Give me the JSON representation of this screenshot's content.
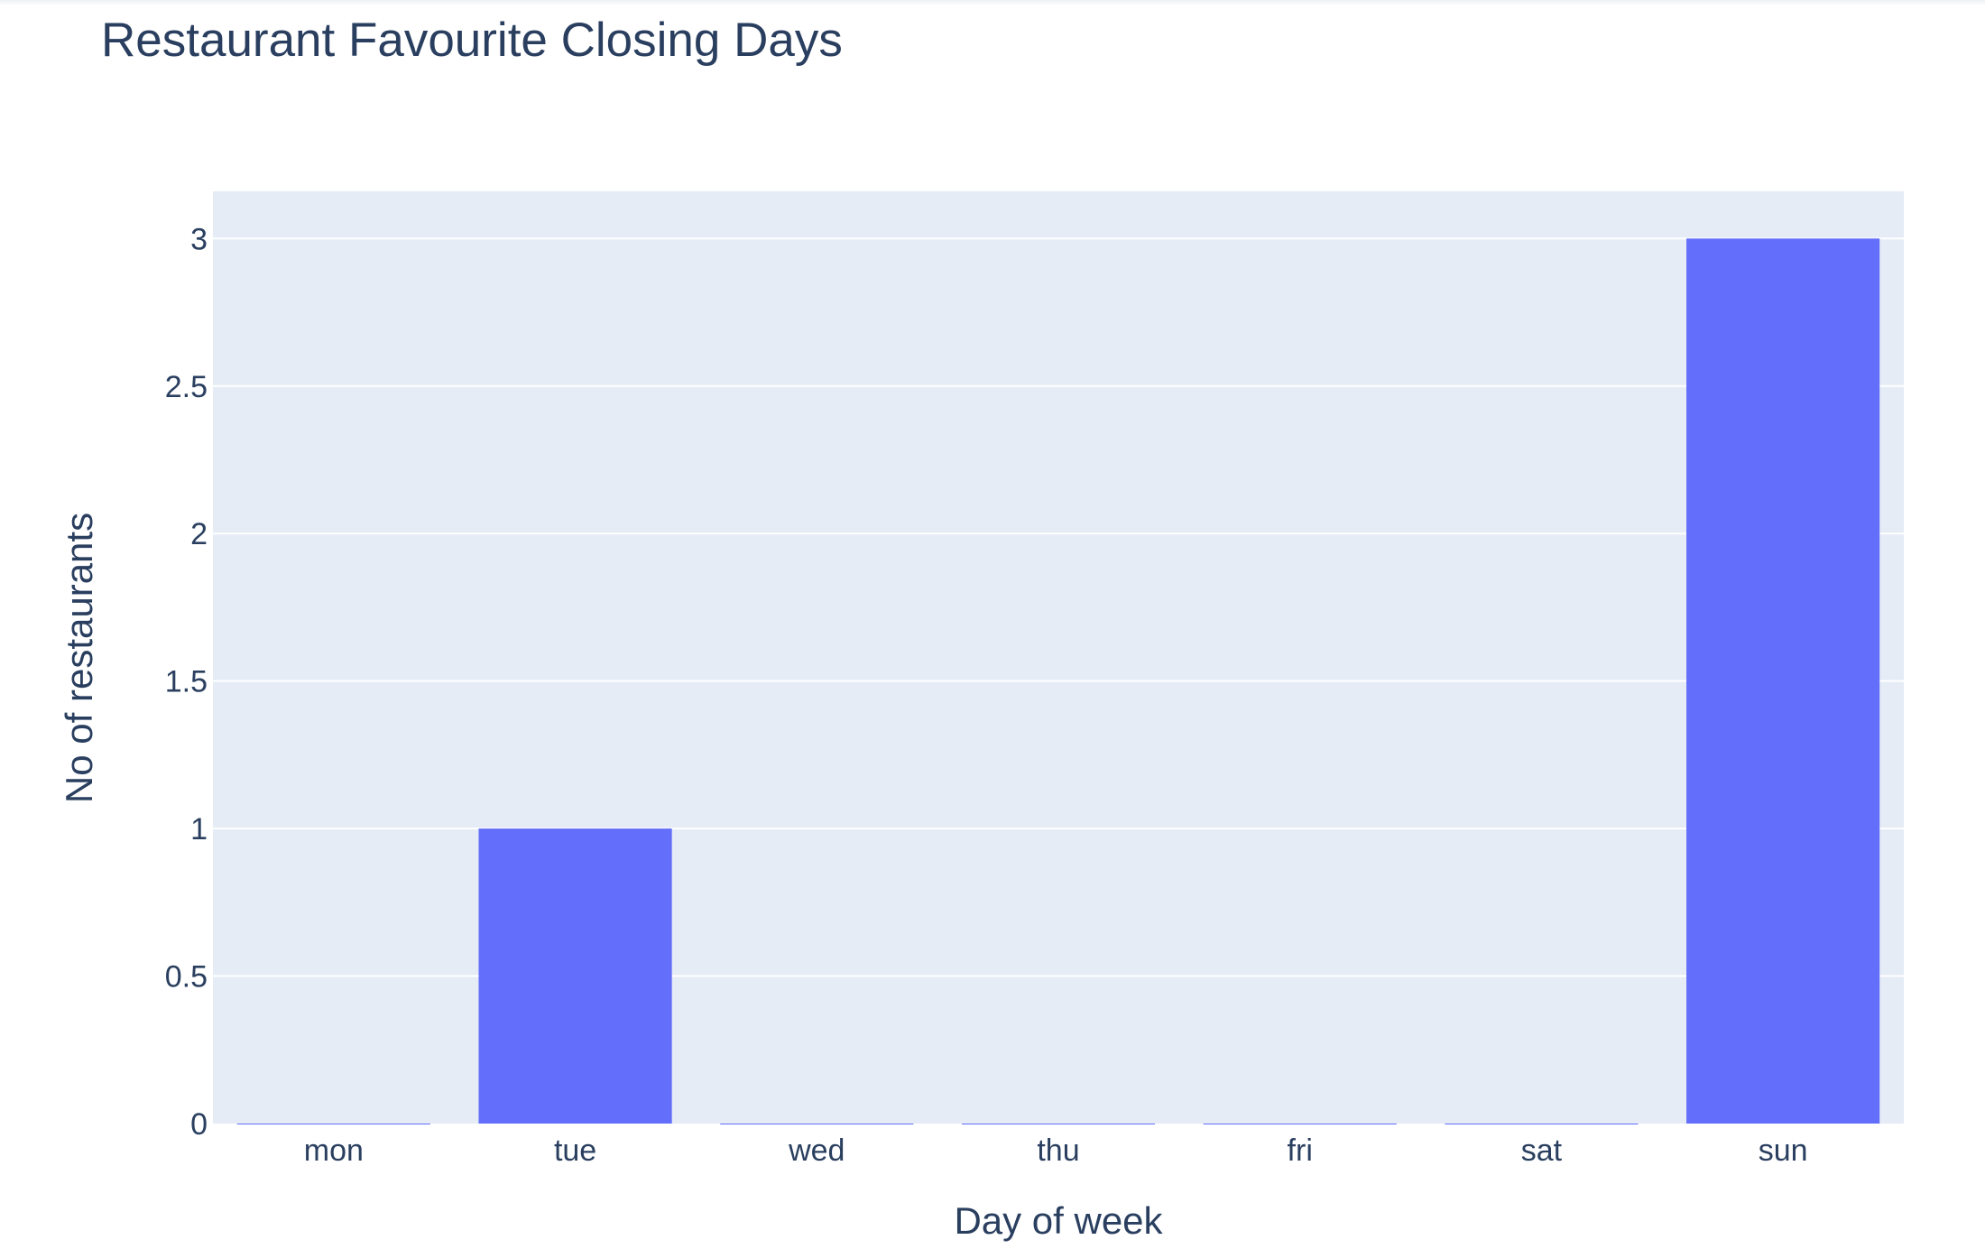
{
  "chart_data": {
    "type": "bar",
    "title": "Restaurant Favourite Closing Days",
    "xlabel": "Day of week",
    "ylabel": "No of restaurants",
    "categories": [
      "mon",
      "tue",
      "wed",
      "thu",
      "fri",
      "sat",
      "sun"
    ],
    "values": [
      0,
      1,
      0,
      0,
      0,
      0,
      3
    ],
    "ylim": [
      0,
      3.16
    ],
    "yticks": [
      0,
      0.5,
      1,
      1.5,
      2,
      2.5,
      3
    ],
    "ytick_labels": [
      "0",
      "0.5",
      "1",
      "1.5",
      "2",
      "2.5",
      "3"
    ],
    "grid": true,
    "legend": "none",
    "colors": {
      "bar": "#636efa",
      "plot_background": "#e5ecf6",
      "grid": "#ffffff",
      "text": "#2a3f5f"
    }
  }
}
